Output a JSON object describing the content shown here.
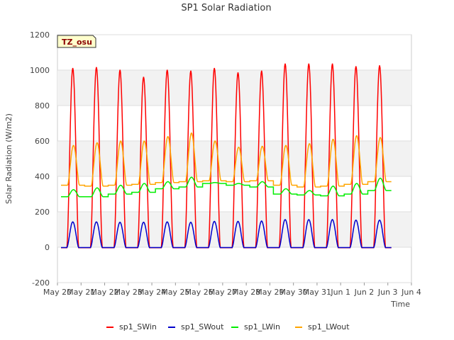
{
  "chart_data": {
    "type": "line",
    "title": "SP1 Solar Radiation",
    "xlabel": "Time",
    "ylabel": "Solar Radiation (W/m2)",
    "ylim": [
      -200,
      1200
    ],
    "yticks": [
      -200,
      0,
      200,
      400,
      600,
      800,
      1000,
      1200
    ],
    "xlim": [
      0,
      15
    ],
    "xticks": [
      {
        "pos": 0,
        "label": "May 20"
      },
      {
        "pos": 1,
        "label": "May 21"
      },
      {
        "pos": 2,
        "label": "May 22"
      },
      {
        "pos": 3,
        "label": "May 23"
      },
      {
        "pos": 4,
        "label": "May 24"
      },
      {
        "pos": 5,
        "label": "May 25"
      },
      {
        "pos": 6,
        "label": "May 26"
      },
      {
        "pos": 7,
        "label": "May 27"
      },
      {
        "pos": 8,
        "label": "May 28"
      },
      {
        "pos": 9,
        "label": "May 29"
      },
      {
        "pos": 10,
        "label": "May 30"
      },
      {
        "pos": 11,
        "label": "May 31"
      },
      {
        "pos": 12,
        "label": "Jun 1"
      },
      {
        "pos": 13,
        "label": "Jun 2"
      },
      {
        "pos": 14,
        "label": "Jun 3"
      },
      {
        "pos": 15,
        "label": "Jun 4"
      }
    ],
    "grid": true,
    "legend_position": "bottom",
    "annotation": "TZ_osu",
    "series": [
      {
        "name": "sp1_SWin",
        "color": "#ff0000",
        "daily_peak": [
          1015,
          1020,
          1005,
          965,
          1005,
          1000,
          1015,
          990,
          1000,
          1040,
          1040,
          1040,
          1025,
          1030
        ]
      },
      {
        "name": "sp1_SWout",
        "color": "#0000cc",
        "daily_peak": [
          145,
          145,
          143,
          143,
          145,
          143,
          148,
          148,
          150,
          158,
          158,
          158,
          155,
          155
        ]
      },
      {
        "name": "sp1_LWin",
        "color": "#00ee00",
        "daily_night": [
          285,
          285,
          300,
          310,
          330,
          340,
          360,
          350,
          340,
          300,
          295,
          290,
          300,
          320
        ],
        "daily_peak": [
          325,
          335,
          350,
          360,
          370,
          395,
          365,
          360,
          370,
          330,
          320,
          345,
          360,
          390
        ]
      },
      {
        "name": "sp1_LWout",
        "color": "#ffa500",
        "daily_night": [
          350,
          345,
          350,
          355,
          365,
          370,
          375,
          370,
          375,
          350,
          340,
          345,
          355,
          370
        ],
        "daily_peak": [
          575,
          590,
          600,
          600,
          625,
          645,
          600,
          565,
          570,
          575,
          585,
          610,
          630,
          620
        ]
      }
    ]
  }
}
